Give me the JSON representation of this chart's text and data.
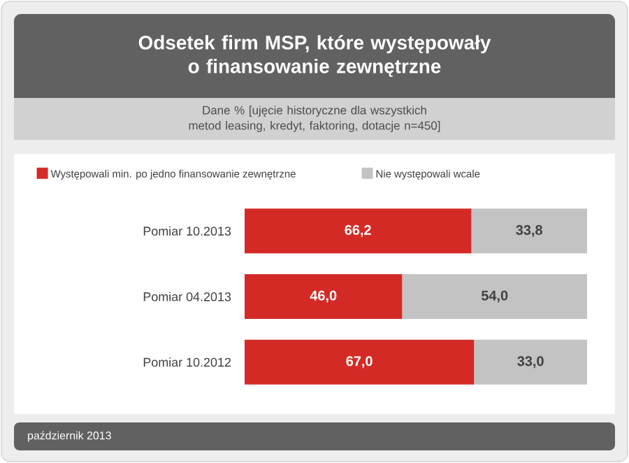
{
  "chart_data": {
    "type": "bar",
    "orientation": "horizontal",
    "stacked": true,
    "title": "Odsetek firm MSP, które występowały o finansowanie zewnętrzne",
    "subtitle": "Dane % [ujęcie historyczne dla wszystkich metod leasing, kredyt, faktoring, dotacje n=450]",
    "categories": [
      "Pomiar 10.2013",
      "Pomiar 04.2013",
      "Pomiar 10.2012"
    ],
    "series": [
      {
        "name": "Występowali min. po jedno finansowanie zewnętrzne",
        "color": "#d42a26",
        "values": [
          66.2,
          46.0,
          67.0
        ],
        "value_labels": [
          "66,2",
          "46,0",
          "67,0"
        ]
      },
      {
        "name": "Nie występowali wcale",
        "color": "#c3c3c3",
        "values": [
          33.8,
          54.0,
          33.0
        ],
        "value_labels": [
          "33,8",
          "54,0",
          "33,0"
        ]
      }
    ],
    "xlim": [
      0,
      100
    ],
    "tick_labels": "y",
    "legend": "top",
    "annotations": [
      "październik 2013"
    ]
  }
}
